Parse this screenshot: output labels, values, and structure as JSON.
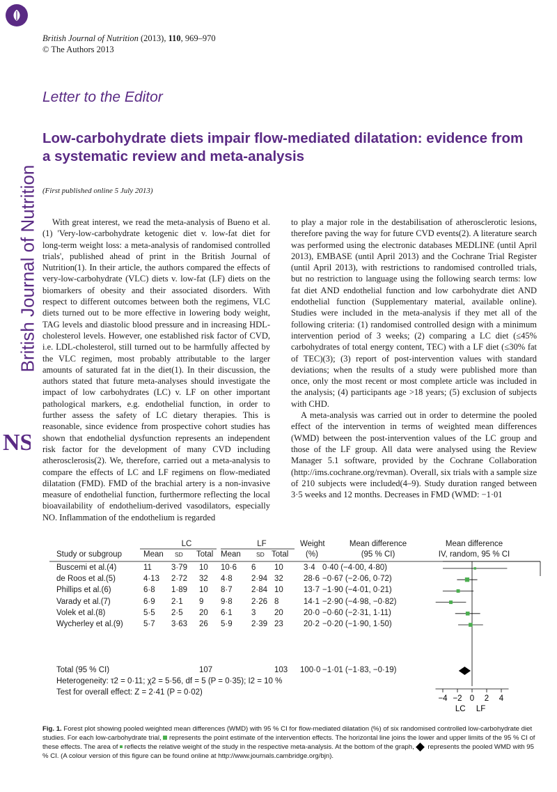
{
  "journal": {
    "name": "British Journal of Nutrition",
    "year_pages_pre": " (2013), ",
    "volume": "110",
    "pages": ", 969–970",
    "copyright": "© The Authors 2013"
  },
  "sidebar_text": "British Journal of Nutrition",
  "section": "Letter to the Editor",
  "title": "Low-carbohydrate diets impair flow-mediated dilatation: evidence from a systematic review and meta-analysis",
  "published": "(First published online 5 July 2013)",
  "col1_text": "With great interest, we read the meta-analysis of Bueno et al.(1) 'Very-low-carbohydrate ketogenic diet v. low-fat diet for long-term weight loss: a meta-analysis of randomised controlled trials', published ahead of print in the British Journal of Nutrition(1). In their article, the authors compared the effects of very-low-carbohydrate (VLC) diets v. low-fat (LF) diets on the biomarkers of obesity and their associated disorders. With respect to different outcomes between both the regimens, VLC diets turned out to be more effective in lowering body weight, TAG levels and diastolic blood pressure and in increasing HDL-cholesterol levels. However, one established risk factor of CVD, i.e. LDL-cholesterol, still turned out to be harmfully affected by the VLC regimen, most probably attributable to the larger amounts of saturated fat in the diet(1). In their discussion, the authors stated that future meta-analyses should investigate the impact of low carbohydrates (LC) v. LF on other important pathological markers, e.g. endothelial function, in order to further assess the safety of LC dietary therapies. This is reasonable, since evidence from prospective cohort studies has shown that endothelial dysfunction represents an independent risk factor for the development of many CVD including atherosclerosis(2). We, therefore, carried out a meta-analysis to compare the effects of LC and LF regimens on flow-mediated dilatation (FMD). FMD of the brachial artery is a non-invasive measure of endothelial function, furthermore reflecting the local bioavailability of endothelium-derived vasodilators, especially NO. Inflammation of the endothelium is regarded",
  "col2_p1": "to play a major role in the destabilisation of atherosclerotic lesions, therefore paving the way for future CVD events(2). A literature search was performed using the electronic databases MEDLINE (until April 2013), EMBASE (until April 2013) and the Cochrane Trial Register (until April 2013), with restrictions to randomised controlled trials, but no restriction to language using the following search terms: low fat diet AND endothelial function and low carbohydrate diet AND endothelial function (Supplementary material, available online). Studies were included in the meta-analysis if they met all of the following criteria: (1) randomised controlled design with a minimum intervention period of 3 weeks; (2) comparing a LC diet (≤45% carbohydrates of total energy content, TEC) with a LF diet (≤30% fat of TEC)(3); (3) report of post-intervention values with standard deviations; when the results of a study were published more than once, only the most recent or most complete article was included in the analysis; (4) participants age >18 years; (5) exclusion of subjects with CHD.",
  "col2_p2": "A meta-analysis was carried out in order to determine the pooled effect of the intervention in terms of weighted mean differences (WMD) between the post-intervention values of the LC group and those of the LF group. All data were analysed using the Review Manager 5.1 software, provided by the Cochrane Collaboration (http://ims.cochrane.org/revman). Overall, six trials with a sample size of 210 subjects were included(4–9). Study duration ranged between 3·5 weeks and 12 months. Decreases in FMD (WMD: −1·01",
  "forest": {
    "group_lc": "LC",
    "group_lf": "LF",
    "col_weight": "Weight",
    "col_weight2": "(%)",
    "col_md": "Mean difference",
    "col_md2": "(95 % CI)",
    "col_md_plot": "Mean difference",
    "col_md_plot2": "IV, random, 95 % CI",
    "col_study": "Study or subgroup",
    "col_mean": "Mean",
    "col_sd": "SD",
    "col_total": "Total",
    "rows": [
      {
        "study": "Buscemi et al.(4)",
        "lc_mean": "11",
        "lc_sd": "3·79",
        "lc_total": "10",
        "lf_mean": "10·6",
        "lf_sd": "6",
        "lf_total": "10",
        "weight": "3·4",
        "md": "0·40 (−4·00, 4·80)"
      },
      {
        "study": "de Roos et al.(5)",
        "lc_mean": "4·13",
        "lc_sd": "2·72",
        "lc_total": "32",
        "lf_mean": "4·8",
        "lf_sd": "2·94",
        "lf_total": "32",
        "weight": "28·6",
        "md": "−0·67 (−2·06, 0·72)"
      },
      {
        "study": "Phillips et al.(6)",
        "lc_mean": "6·8",
        "lc_sd": "1·89",
        "lc_total": "10",
        "lf_mean": "8·7",
        "lf_sd": "2·84",
        "lf_total": "10",
        "weight": "13·7",
        "md": "−1·90 (−4·01, 0·21)"
      },
      {
        "study": "Varady et al.(7)",
        "lc_mean": "6·9",
        "lc_sd": "2·1",
        "lc_total": "9",
        "lf_mean": "9·8",
        "lf_sd": "2·26",
        "lf_total": "8",
        "weight": "14·1",
        "md": "−2·90 (−4·98, −0·82)"
      },
      {
        "study": "Volek et al.(8)",
        "lc_mean": "5·5",
        "lc_sd": "2·5",
        "lc_total": "20",
        "lf_mean": "6·1",
        "lf_sd": "3",
        "lf_total": "20",
        "weight": "20·0",
        "md": "−0·60 (−2·31, 1·11)"
      },
      {
        "study": "Wycherley et al.(9)",
        "lc_mean": "5·7",
        "lc_sd": "3·63",
        "lc_total": "26",
        "lf_mean": "5·9",
        "lf_sd": "2·39",
        "lf_total": "23",
        "weight": "20·2",
        "md": "−0·20 (−1·90, 1·50)"
      }
    ],
    "total_label": "Total (95 % CI)",
    "total_lc": "107",
    "total_lf": "103",
    "total_weight": "100·0",
    "total_md": "−1·01 (−1·83, −0·19)",
    "heterogeneity": "Heterogeneity: τ2 = 0·11; χ2 = 5·56, df = 5 (P = 0·35); I2 = 10 %",
    "overall": "Test for overall effect: Z = 2·41 (P = 0·02)",
    "axis_ticks": [
      "−4",
      "−2",
      "0",
      "2",
      "4"
    ],
    "axis_left": "LC",
    "axis_right": "LF",
    "marker_color": "#4caf50"
  },
  "chart_data": {
    "type": "scatter",
    "title": "",
    "xlabel": "",
    "xlim": [
      -5,
      5
    ],
    "categories": [
      "Buscemi et al.",
      "de Roos et al.",
      "Phillips et al.",
      "Varady et al.",
      "Volek et al.",
      "Wycherley et al."
    ],
    "series": [
      {
        "values": [
          0.4,
          -0.67,
          -1.9,
          -2.9,
          -0.6,
          -0.2
        ],
        "lower": [
          -4.0,
          -2.06,
          -4.01,
          -4.98,
          -2.31,
          -1.9
        ],
        "upper": [
          4.8,
          0.72,
          0.21,
          -0.82,
          1.11,
          1.5
        ],
        "weights": [
          3.4,
          28.6,
          13.7,
          14.1,
          20.0,
          20.2
        ]
      }
    ],
    "pooled": {
      "value": -1.01,
      "lower": -1.83,
      "upper": -0.19
    }
  },
  "caption": {
    "label": "Fig. 1.",
    "part1": " Forest plot showing pooled weighted mean differences (WMD) with 95 % CI for flow-mediated dilatation (%) of six randomised controlled low-carbohydrate diet studies. For each low-carbohydrate trial,",
    "part2": " represents the point estimate of the intervention effects. The horizontal line joins the lower and upper limits of the 95 % CI of these effects. The area of",
    "part3": " reflects the relative weight of the study in the respective meta-analysis. At the bottom of the graph,",
    "part4": " represents the pooled WMD with 95 % CI. (A colour version of this figure can be found online at http://www.journals.cambridge.org/bjn)."
  }
}
